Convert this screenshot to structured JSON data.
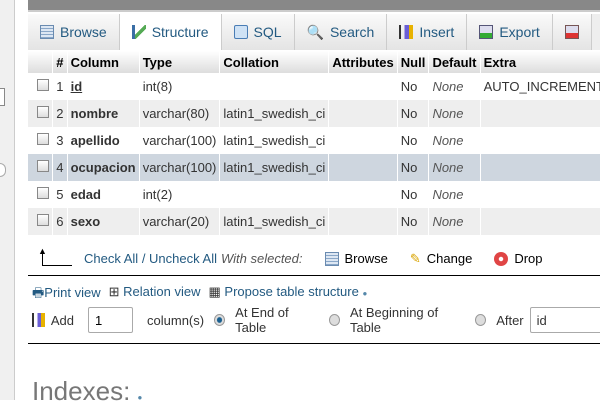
{
  "tabs": [
    {
      "label": "Browse",
      "icon": "browse-icon"
    },
    {
      "label": "Structure",
      "icon": "structure-icon"
    },
    {
      "label": "SQL",
      "icon": "sql-icon"
    },
    {
      "label": "Search",
      "icon": "search-icon"
    },
    {
      "label": "Insert",
      "icon": "insert-icon"
    },
    {
      "label": "Export",
      "icon": "export-icon"
    }
  ],
  "active_tab": "Structure",
  "headers": [
    "#",
    "Column",
    "Type",
    "Collation",
    "Attributes",
    "Null",
    "Default",
    "Extra"
  ],
  "rows": [
    {
      "n": "1",
      "name": "id",
      "type": "int(8)",
      "collation": "",
      "attributes": "",
      "null": "No",
      "default": "None",
      "extra": "AUTO_INCREMENT"
    },
    {
      "n": "2",
      "name": "nombre",
      "type": "varchar(80)",
      "collation": "latin1_swedish_ci",
      "attributes": "",
      "null": "No",
      "default": "None",
      "extra": ""
    },
    {
      "n": "3",
      "name": "apellido",
      "type": "varchar(100)",
      "collation": "latin1_swedish_ci",
      "attributes": "",
      "null": "No",
      "default": "None",
      "extra": ""
    },
    {
      "n": "4",
      "name": "ocupacion",
      "type": "varchar(100)",
      "collation": "latin1_swedish_ci",
      "attributes": "",
      "null": "No",
      "default": "None",
      "extra": ""
    },
    {
      "n": "5",
      "name": "edad",
      "type": "int(2)",
      "collation": "",
      "attributes": "",
      "null": "No",
      "default": "None",
      "extra": ""
    },
    {
      "n": "6",
      "name": "sexo",
      "type": "varchar(20)",
      "collation": "latin1_swedish_ci",
      "attributes": "",
      "null": "No",
      "default": "None",
      "extra": ""
    }
  ],
  "bulk": {
    "check_all": "Check All",
    "sep": " / ",
    "uncheck_all": "Uncheck All",
    "with_selected": "With selected:",
    "browse": "Browse",
    "change": "Change",
    "drop": "Drop"
  },
  "tools": {
    "print": "Print view",
    "relation": "Relation view",
    "propose": "Propose table structure"
  },
  "add": {
    "label": "Add",
    "count": "1",
    "columns": "column(s)",
    "end": "At End of Table",
    "beginning": "At Beginning of Table",
    "after": "After",
    "after_value": "id"
  },
  "indexes_title": "Indexes:",
  "colors": {
    "link": "#235a81",
    "highlight_row": "#ced6df"
  }
}
